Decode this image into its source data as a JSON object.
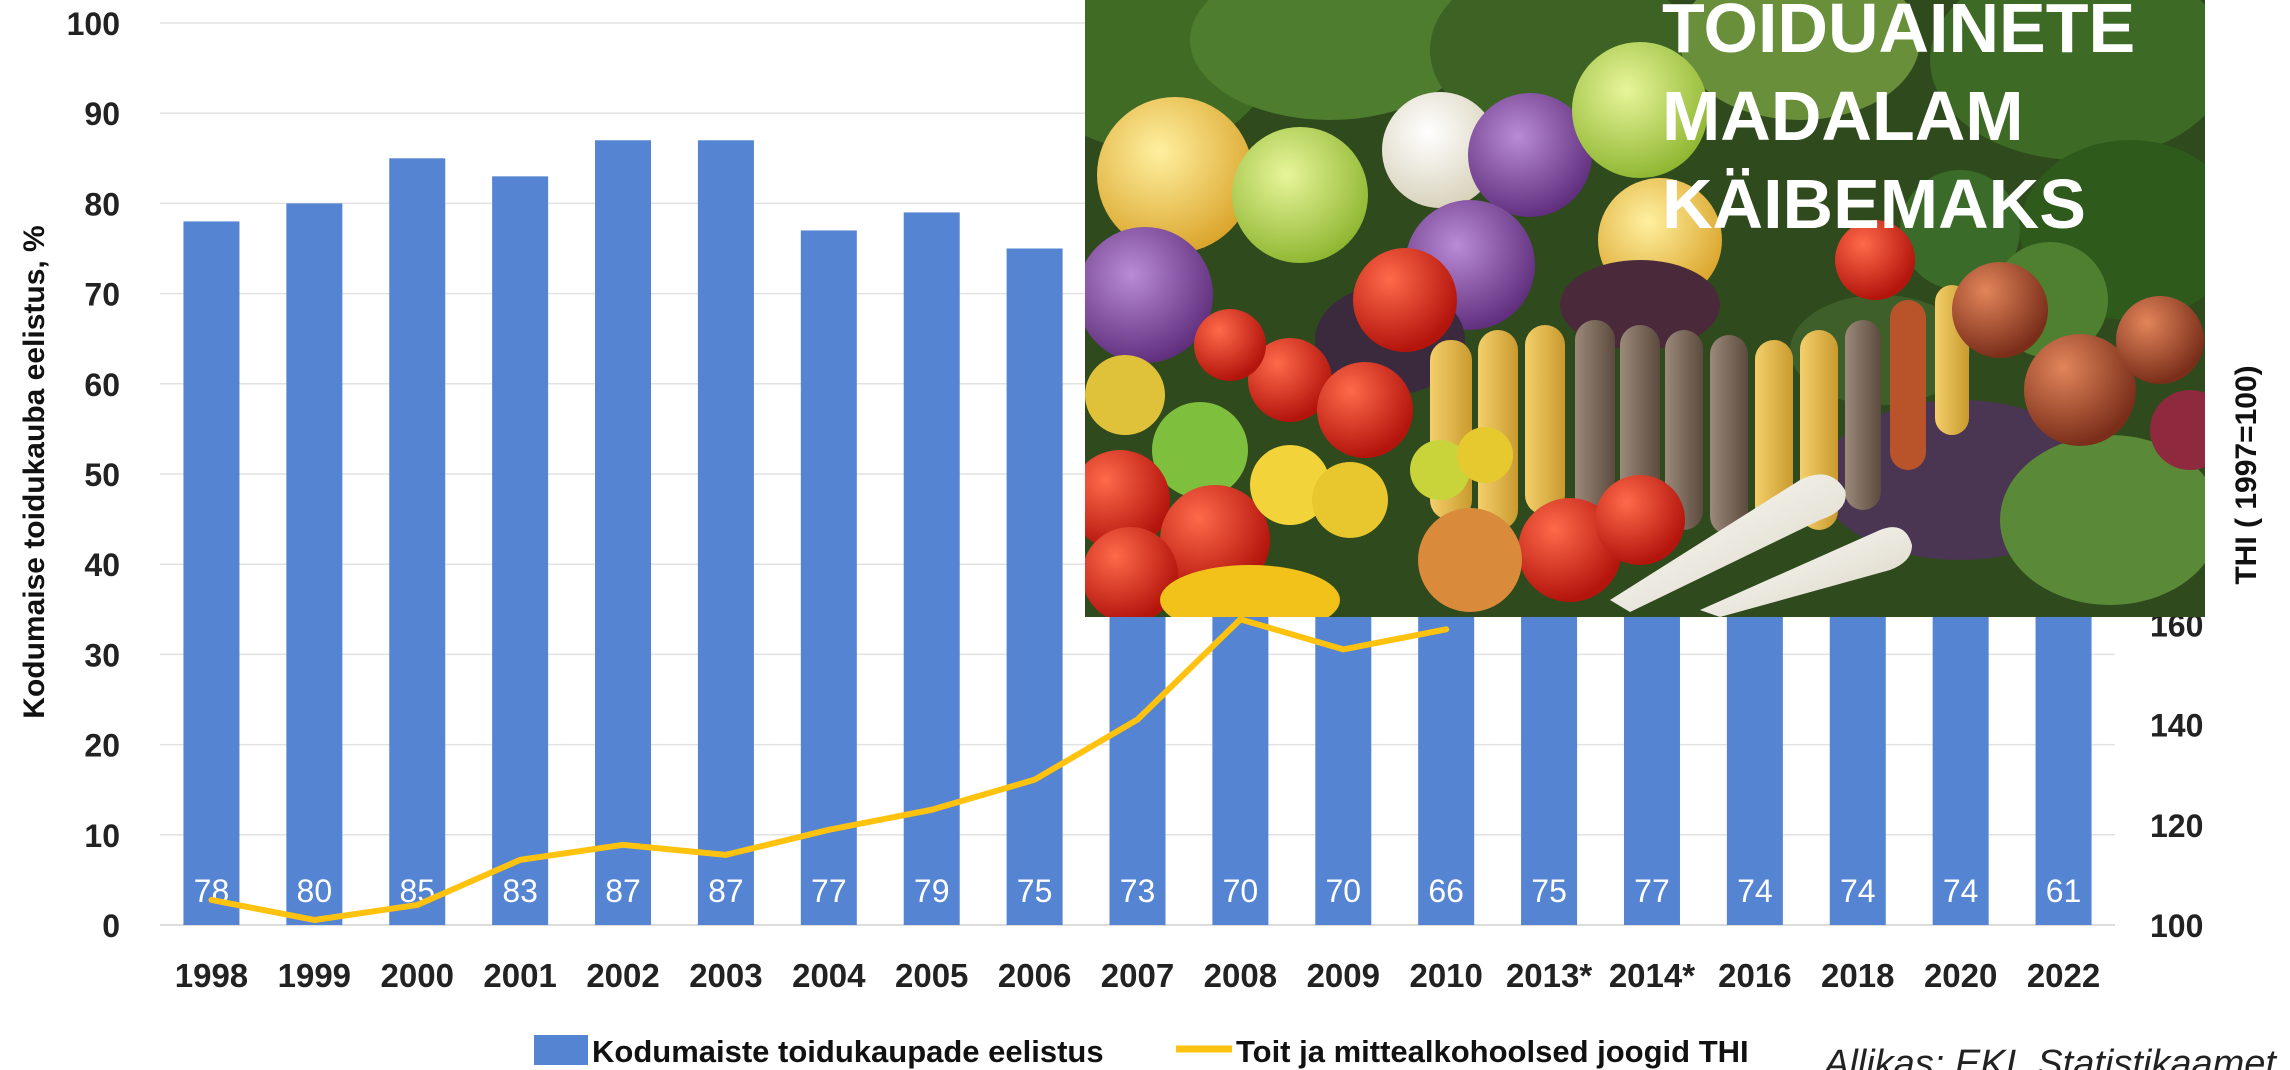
{
  "chart_data": {
    "type": "bar",
    "categories": [
      "1998",
      "1999",
      "2000",
      "2001",
      "2002",
      "2003",
      "2004",
      "2005",
      "2006",
      "2007",
      "2008",
      "2009",
      "2010",
      "2013*",
      "2014*",
      "2016",
      "2018",
      "2020",
      "2022"
    ],
    "series": [
      {
        "name": "Kodumaiste toidukaupade eelistus",
        "type": "bar",
        "axis": "left",
        "color": "#5584d2",
        "values": [
          78,
          80,
          85,
          83,
          87,
          87,
          77,
          79,
          75,
          73,
          70,
          70,
          66,
          75,
          77,
          74,
          74,
          74,
          61
        ]
      },
      {
        "name": "Toit ja mittealkohoolsed joogid THI",
        "type": "line",
        "axis": "right",
        "color": "#ffc20e",
        "values": [
          105,
          101,
          104,
          113,
          116,
          114,
          119,
          123,
          129,
          141,
          161,
          155,
          159,
          null,
          null,
          null,
          null,
          null,
          null
        ]
      }
    ],
    "ylabel": "Kodumaise toidukauba eelistus, %",
    "ylim": [
      0,
      100
    ],
    "yticks": [
      0,
      10,
      20,
      30,
      40,
      50,
      60,
      70,
      80,
      90,
      100
    ],
    "y2label": "THI ( 1997=100)",
    "y2lim": [
      100,
      280
    ],
    "y2ticks": [
      100,
      120,
      140,
      160
    ],
    "grid": true,
    "legend_position": "bottom"
  },
  "overlay": {
    "photo_icon": "vegetables-photo",
    "title_lines": [
      "TOIDUAINETE",
      "MADALAM",
      "KÄIBEMAKS"
    ]
  },
  "source_text": "Allikas: EKI, Statistikaamet"
}
